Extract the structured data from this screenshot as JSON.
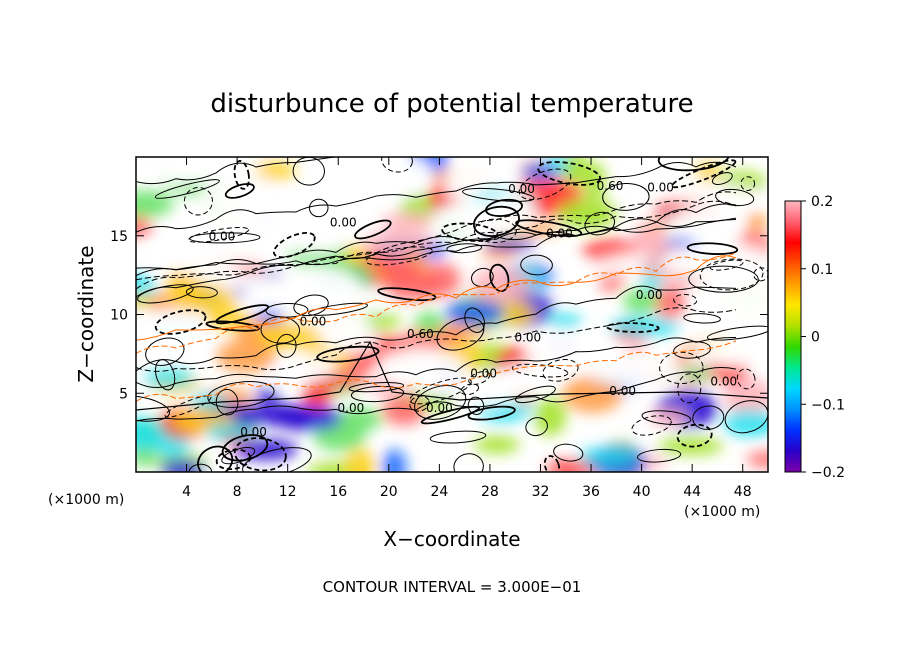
{
  "chart_data": {
    "type": "heatmap",
    "title": "disturbunce of potential temperature",
    "xlabel": "X−coordinate",
    "ylabel": "Z−coordinate",
    "x_unit_left": "(×1000 m)",
    "x_unit_right": "(×1000 m)",
    "footer": "CONTOUR INTERVAL = 3.000E−01",
    "xlim": [
      0,
      50
    ],
    "ylim": [
      0,
      20
    ],
    "x_ticks": [
      4,
      8,
      12,
      16,
      20,
      24,
      28,
      32,
      36,
      40,
      44,
      48
    ],
    "y_ticks": [
      5,
      10,
      15
    ],
    "colorbar": {
      "range": [
        -0.2,
        0.2
      ],
      "tick_values": [
        0.2,
        0.1,
        0,
        -0.1,
        -0.2
      ],
      "tick_labels": [
        "0.2",
        "0.1",
        "0",
        "−0.1",
        "−0.2"
      ],
      "colors": [
        "#7b00a8",
        "#2a00c8",
        "#0030ff",
        "#0090ff",
        "#00d8ff",
        "#00e890",
        "#30d800",
        "#b0e000",
        "#ffe800",
        "#ffa000",
        "#ff5000",
        "#ff0000",
        "#ff6070",
        "#ffb8c0"
      ]
    },
    "contour_labels": [
      {
        "text": "0.60",
        "x": 37.5,
        "y": 17.9
      },
      {
        "text": "0.00",
        "x": 41.5,
        "y": 17.8
      },
      {
        "text": "0.00",
        "x": 30.5,
        "y": 17.7
      },
      {
        "text": "0.00",
        "x": 16.4,
        "y": 15.6
      },
      {
        "text": "0.00",
        "x": 6.8,
        "y": 14.7
      },
      {
        "text": "0.00",
        "x": 33.5,
        "y": 14.9
      },
      {
        "text": "0.00",
        "x": 40.6,
        "y": 11.0
      },
      {
        "text": "0.00",
        "x": 14.0,
        "y": 9.3
      },
      {
        "text": "0.60",
        "x": 22.5,
        "y": 8.5
      },
      {
        "text": "0.00",
        "x": 31.0,
        "y": 8.3
      },
      {
        "text": "0.00",
        "x": 27.5,
        "y": 6.0
      },
      {
        "text": "0.00",
        "x": 46.5,
        "y": 5.5
      },
      {
        "text": "0.00",
        "x": 38.5,
        "y": 4.9
      },
      {
        "text": "0.00",
        "x": 17.0,
        "y": 3.8
      },
      {
        "text": "0.00",
        "x": 24.0,
        "y": 3.8
      },
      {
        "text": "0.00",
        "x": 9.3,
        "y": 2.3
      }
    ],
    "grid": false
  }
}
